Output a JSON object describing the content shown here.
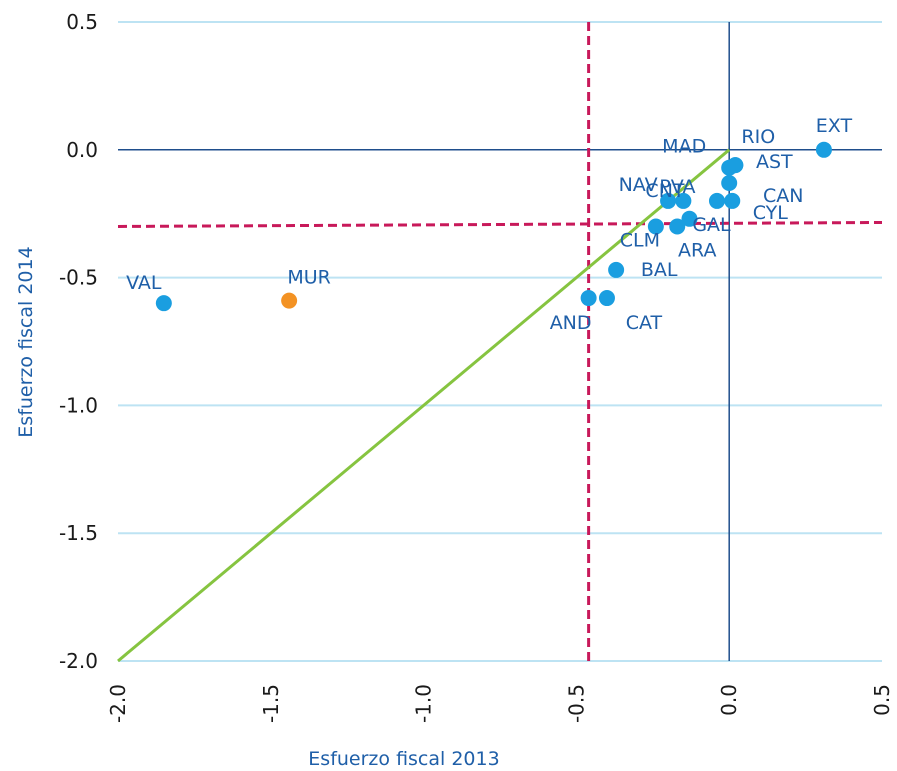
{
  "chart_data": {
    "type": "scatter",
    "xlabel": "Esfuerzo fiscal 2013",
    "ylabel": "Esfuerzo fiscal 2014",
    "xlim": [
      -2.0,
      0.5
    ],
    "ylim": [
      -2.0,
      0.5
    ],
    "xticks": [
      "-2.0",
      "-1.5",
      "-1.0",
      "-0.5",
      "0.0",
      "0.5"
    ],
    "yticks": [
      "0.5",
      "0.0",
      "-0.5",
      "-1.0",
      "-1.5",
      "-2.0"
    ],
    "grid": "horizontal",
    "colors": {
      "point": "#1a9ee0",
      "highlight": "#f39223",
      "diagonal": "#86c440",
      "threshold": "#c8195a",
      "zero_line": "#1f4e8c",
      "grid": "#bde3f3",
      "label": "#1f5fa8"
    },
    "reference_lines": {
      "x_threshold": -0.46,
      "y_threshold": -0.3,
      "diagonal": [
        [
          -2.0,
          -2.0
        ],
        [
          0.0,
          0.0
        ]
      ]
    },
    "points": [
      {
        "label": "VAL",
        "x": -1.85,
        "y": -0.6
      },
      {
        "label": "MUR",
        "x": -1.44,
        "y": -0.59,
        "highlight": true
      },
      {
        "label": "AND",
        "x": -0.46,
        "y": -0.58
      },
      {
        "label": "CAT",
        "x": -0.4,
        "y": -0.58
      },
      {
        "label": "BAL",
        "x": -0.37,
        "y": -0.47
      },
      {
        "label": "CLM",
        "x": -0.24,
        "y": -0.3
      },
      {
        "label": "NAV",
        "x": -0.2,
        "y": -0.2
      },
      {
        "label": "PVA",
        "x": -0.15,
        "y": -0.2
      },
      {
        "label": "CNT",
        "x": -0.04,
        "y": -0.2
      },
      {
        "label": "ARA",
        "x": -0.17,
        "y": -0.3
      },
      {
        "label": "GAL",
        "x": -0.13,
        "y": -0.27
      },
      {
        "label": "CYL",
        "x": 0.01,
        "y": -0.2
      },
      {
        "label": "CAN",
        "x": 0.0,
        "y": -0.13
      },
      {
        "label": "MAD",
        "x": 0.0,
        "y": -0.07
      },
      {
        "label": "RIO",
        "x": 0.02,
        "y": -0.06
      },
      {
        "label": "AST",
        "x": 0.02,
        "y": -0.06
      },
      {
        "label": "EXT",
        "x": 0.31,
        "y": 0.0
      }
    ]
  }
}
